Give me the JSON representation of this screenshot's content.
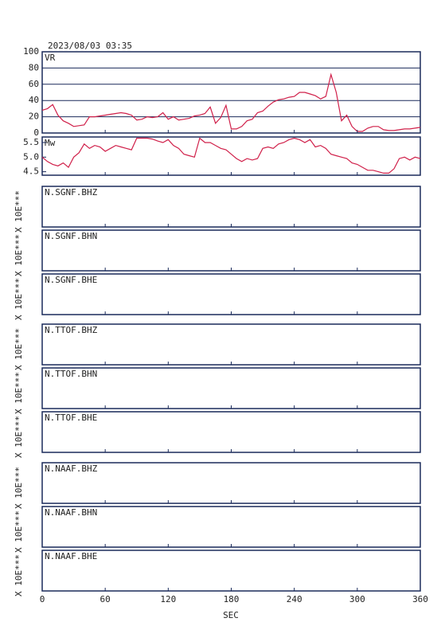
{
  "chart_data": {
    "type": "line",
    "title": "2023/08/03 03:35",
    "xlabel": "SEC",
    "xlim": [
      0,
      360
    ],
    "xticks": [
      0,
      60,
      120,
      180,
      240,
      300,
      360
    ],
    "x": [
      0,
      5,
      10,
      15,
      20,
      25,
      30,
      35,
      40,
      45,
      50,
      55,
      60,
      65,
      70,
      75,
      80,
      85,
      90,
      95,
      100,
      105,
      110,
      115,
      120,
      125,
      130,
      135,
      140,
      145,
      150,
      155,
      160,
      165,
      170,
      175,
      180,
      185,
      190,
      195,
      200,
      205,
      210,
      215,
      220,
      225,
      230,
      235,
      240,
      245,
      250,
      255,
      260,
      265,
      270,
      275,
      280,
      285,
      290,
      295,
      300,
      305,
      310,
      315,
      320,
      325,
      330,
      335,
      340,
      345,
      350,
      355,
      360
    ],
    "panels": [
      {
        "label": "VR",
        "ylim": [
          0,
          100
        ],
        "yticks": [
          0,
          20,
          40,
          60,
          80,
          100
        ],
        "grid": true,
        "color": "#d0204a",
        "values": [
          28,
          30,
          35,
          22,
          15,
          12,
          8,
          9,
          10,
          20,
          20,
          21,
          22,
          23,
          24,
          25,
          24,
          22,
          16,
          17,
          20,
          19,
          20,
          25,
          17,
          20,
          16,
          17,
          18,
          21,
          22,
          24,
          32,
          12,
          19,
          34,
          5,
          5,
          8,
          15,
          17,
          25,
          27,
          33,
          38,
          41,
          42,
          44,
          45,
          50,
          50,
          48,
          46,
          42,
          45,
          72,
          50,
          15,
          22,
          8,
          2,
          2,
          6,
          8,
          8,
          4,
          3,
          3,
          4,
          5,
          5,
          6,
          7
        ]
      },
      {
        "label": "Mw",
        "ylim": [
          4.38,
          5.69
        ],
        "yticks": [
          4.5,
          {
            "value": 5,
            "label": "5.0"
          },
          5.5
        ],
        "grid": false,
        "color": "#d0204a",
        "values": [
          5.0,
          4.85,
          4.75,
          4.7,
          4.8,
          4.65,
          5.0,
          5.15,
          5.45,
          5.3,
          5.4,
          5.35,
          5.2,
          5.3,
          5.4,
          5.35,
          5.3,
          5.25,
          5.65,
          5.65,
          5.65,
          5.62,
          5.55,
          5.5,
          5.6,
          5.4,
          5.3,
          5.1,
          5.05,
          5.0,
          5.65,
          5.5,
          5.5,
          5.4,
          5.3,
          5.25,
          5.1,
          4.95,
          4.85,
          4.95,
          4.9,
          4.95,
          5.3,
          5.35,
          5.3,
          5.45,
          5.5,
          5.6,
          5.65,
          5.6,
          5.5,
          5.6,
          5.35,
          5.4,
          5.3,
          5.1,
          5.05,
          5.0,
          4.95,
          4.8,
          4.75,
          4.65,
          4.55,
          4.55,
          4.5,
          4.45,
          4.45,
          4.6,
          4.95,
          5.0,
          4.9,
          5.0,
          4.95
        ]
      },
      {
        "label": "N.SGNF.BHZ",
        "ylabel": "X 10E***"
      },
      {
        "label": "N.SGNF.BHN",
        "ylabel": "X 10E***"
      },
      {
        "label": "N.SGNF.BHE",
        "ylabel": "X 10E***"
      },
      {
        "label": "N.TTOF.BHZ",
        "ylabel": "X 10E***"
      },
      {
        "label": "N.TTOF.BHN",
        "ylabel": "X 10E***"
      },
      {
        "label": "N.TTOF.BHE",
        "ylabel": "X 10E***"
      },
      {
        "label": "N.NAAF.BHZ",
        "ylabel": "X 10E***"
      },
      {
        "label": "N.NAAF.BHN",
        "ylabel": "X 10E***"
      },
      {
        "label": "N.NAAF.BHE",
        "ylabel": "X 10E***"
      }
    ]
  }
}
